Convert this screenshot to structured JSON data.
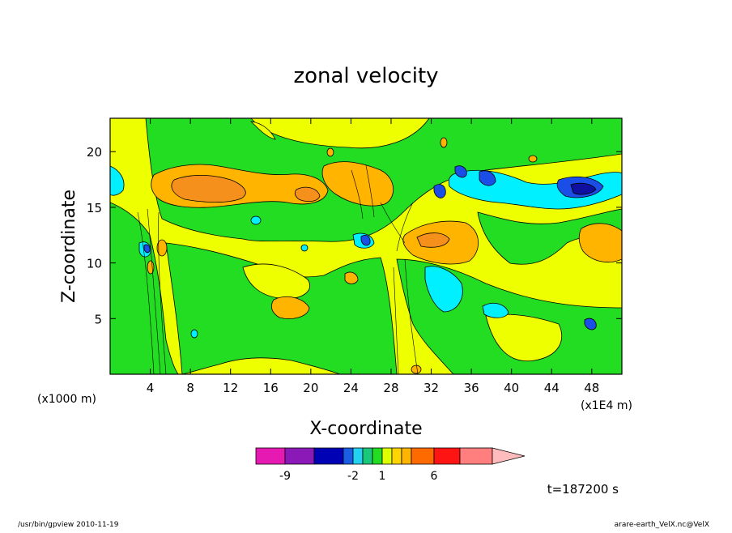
{
  "chart_data": {
    "type": "heatmap",
    "title": "zonal velocity",
    "xlabel": "X-coordinate",
    "ylabel": "Z-coordinate",
    "x_scale_note": "(x1E4 m)",
    "y_scale_note": "(x1000 m)",
    "xlim": [
      0,
      51
    ],
    "ylim": [
      0,
      23
    ],
    "x_ticks": [
      4,
      8,
      12,
      16,
      20,
      24,
      28,
      32,
      36,
      40,
      44,
      48
    ],
    "y_ticks": [
      5,
      10,
      15,
      20
    ],
    "colorbar": {
      "levels": [
        -12,
        -9,
        -6,
        -4,
        -2,
        -1,
        0,
        1,
        2,
        3,
        4,
        6,
        9,
        12
      ],
      "colors": [
        "#e61ab3",
        "#8a19b8",
        "#0000b4",
        "#1a5ee6",
        "#22d2f0",
        "#19c87a",
        "#22dd22",
        "#ddff00",
        "#ffd400",
        "#ffb400",
        "#ff6a00",
        "#ff1414",
        "#ff7f7f",
        "#ffbcbc"
      ],
      "labels": [
        {
          "value": -9,
          "text": "-9"
        },
        {
          "value": -2,
          "text": "-2"
        },
        {
          "value": 1,
          "text": "1"
        },
        {
          "value": 6,
          "text": "6"
        }
      ]
    },
    "grid": false,
    "legend": "colorbar-bottom"
  },
  "time_label": "t=187200 s",
  "footer": {
    "left": "/usr/bin/gpview   2010-11-19",
    "right": "arare-earth_VelX.nc@VelX"
  },
  "colors": {
    "green": "#22dd22",
    "yellow": "#eeff00",
    "orange": "#ffb400",
    "dark_orange": "#f5901c",
    "cyan": "#00f0ff",
    "blue": "#1a4ee6",
    "navy": "#1010a0"
  }
}
